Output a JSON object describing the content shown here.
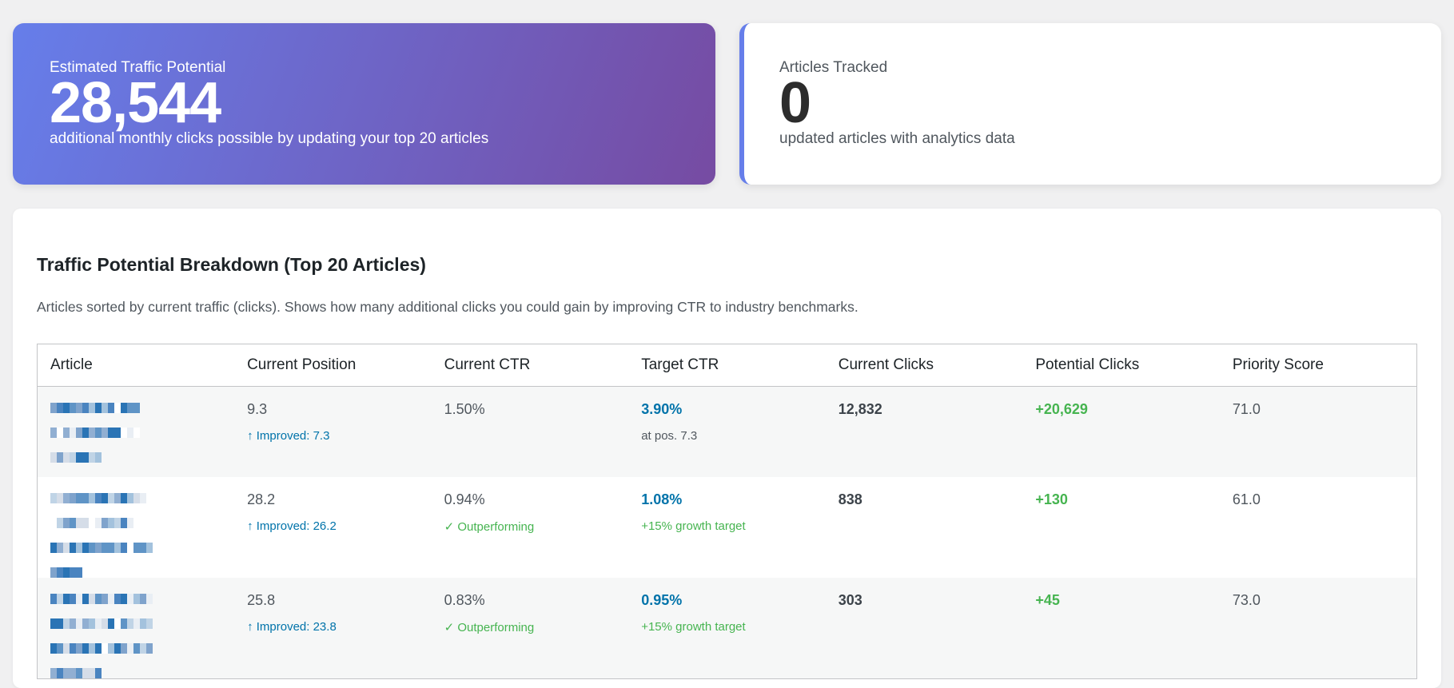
{
  "traffic_card": {
    "label": "Estimated Traffic Potential",
    "value": "28,544",
    "subtitle": "additional monthly clicks possible by updating your top 20 articles"
  },
  "tracked_card": {
    "label": "Articles Tracked",
    "value": "0",
    "subtitle": "updated articles with analytics data"
  },
  "breakdown": {
    "title": "Traffic Potential Breakdown (Top 20 Articles)",
    "description": "Articles sorted by current traffic (clicks). Shows how many additional clicks you could gain by improving CTR to industry benchmarks.",
    "columns": [
      "Article",
      "Current Position",
      "Current CTR",
      "Target CTR",
      "Current Clicks",
      "Potential Clicks",
      "Priority Score"
    ],
    "rows": [
      {
        "position": "9.3",
        "position_note": "↑ Improved: 7.3",
        "ctr": "1.50%",
        "ctr_note": "",
        "target": "3.90%",
        "target_note": "at pos. 7.3",
        "clicks": "12,832",
        "potential": "+20,629",
        "priority": "71.0"
      },
      {
        "position": "28.2",
        "position_note": "↑ Improved: 26.2",
        "ctr": "0.94%",
        "ctr_note": "✓ Outperforming",
        "target": "1.08%",
        "target_note": "+15% growth target",
        "clicks": "838",
        "potential": "+130",
        "priority": "61.0"
      },
      {
        "position": "25.8",
        "position_note": "↑ Improved: 23.8",
        "ctr": "0.83%",
        "ctr_note": "✓ Outperforming",
        "target": "0.95%",
        "target_note": "+15% growth target",
        "clicks": "303",
        "potential": "+45",
        "priority": "73.0"
      }
    ]
  },
  "colors": {
    "gradient_start": "#667eea",
    "gradient_end": "#764ba2",
    "link_blue": "#0073aa",
    "success_green": "#46b450"
  }
}
